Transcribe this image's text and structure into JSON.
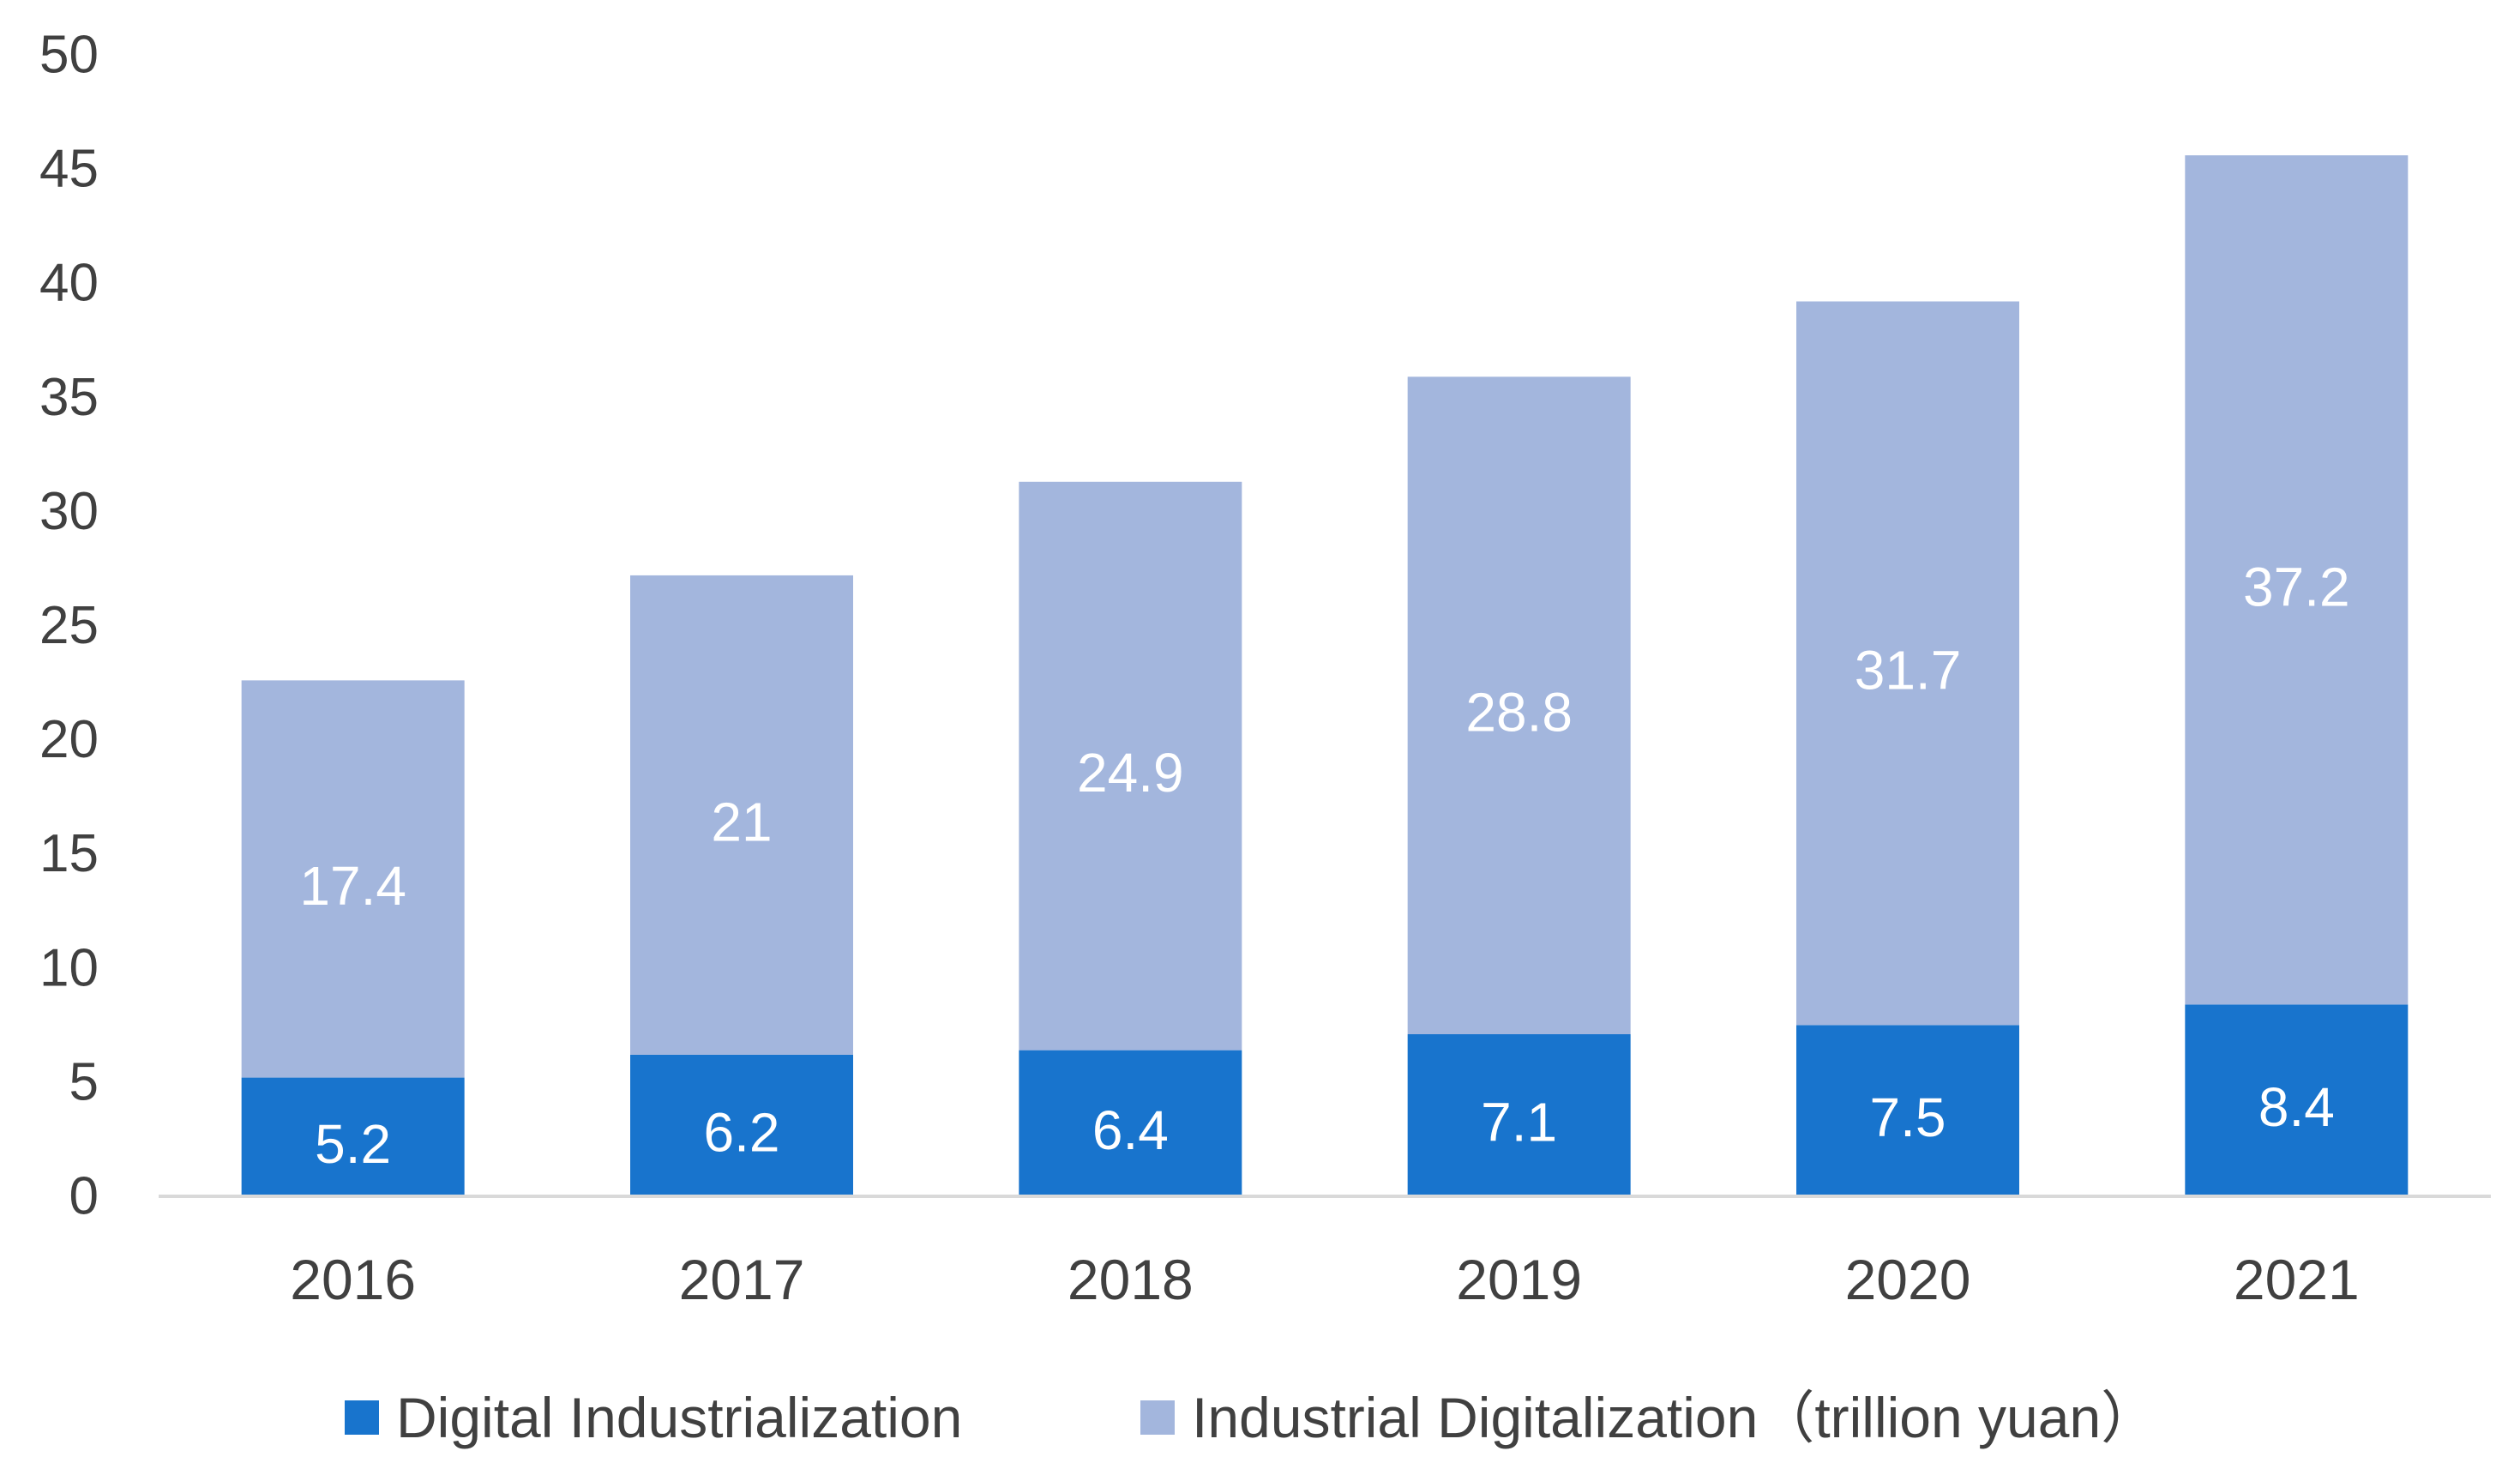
{
  "chart_data": {
    "type": "bar",
    "stacked": true,
    "categories": [
      "2016",
      "2017",
      "2018",
      "2019",
      "2020",
      "2021"
    ],
    "series": [
      {
        "name": "Digital Industrialization",
        "values": [
          5.2,
          6.2,
          6.4,
          7.1,
          7.5,
          8.4
        ],
        "color": "#1874CD"
      },
      {
        "name": "Industrial Digitalization",
        "values": [
          17.4,
          21,
          24.9,
          28.8,
          31.7,
          37.2
        ],
        "color": "#A3B6DD"
      }
    ],
    "legend_suffix": "（trillion yuan）",
    "ylim": [
      0,
      50
    ],
    "yticks": [
      "0",
      "5",
      "10",
      "15",
      "20",
      "25",
      "30",
      "35",
      "40",
      "45",
      "50"
    ],
    "title": "",
    "xlabel": "",
    "ylabel": "",
    "grid": false,
    "legend_position": "bottom",
    "label_color": "#ffffff",
    "axis_color": "#D9D9D9",
    "tick_color": "#404040"
  }
}
